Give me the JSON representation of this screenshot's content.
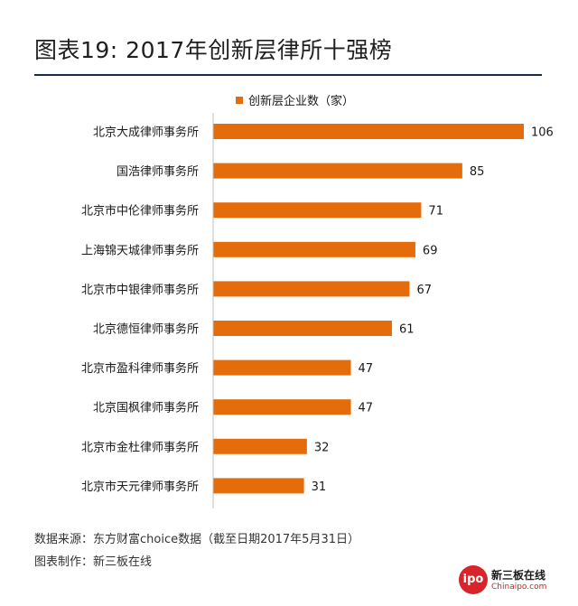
{
  "title": "图表19: 2017年创新层律所十强榜",
  "chart_data": {
    "type": "bar",
    "orientation": "horizontal",
    "categories": [
      "北京大成律师事务所",
      "国浩律师事务所",
      "北京市中伦律师事务所",
      "上海锦天城律师事务所",
      "北京市中银律师事务所",
      "北京德恒律师事务所",
      "北京市盈科律师事务所",
      "北京国枫律师事务所",
      "北京市金杜律师事务所",
      "北京市天元律师事务所"
    ],
    "series": [
      {
        "name": "创新层企业数（家）",
        "values": [
          106,
          85,
          71,
          69,
          67,
          61,
          47,
          47,
          32,
          31
        ],
        "color": "#e46c0a"
      }
    ],
    "xlim": [
      0,
      110
    ],
    "grid": false,
    "legend": "top"
  },
  "footer": {
    "source": "数据来源：东方财富choice数据（截至日期2017年5月31日）",
    "maker": "图表制作：新三板在线"
  },
  "logo": {
    "badge": "ipo",
    "name": "新三板在线",
    "url": "Chinaipo.com"
  }
}
